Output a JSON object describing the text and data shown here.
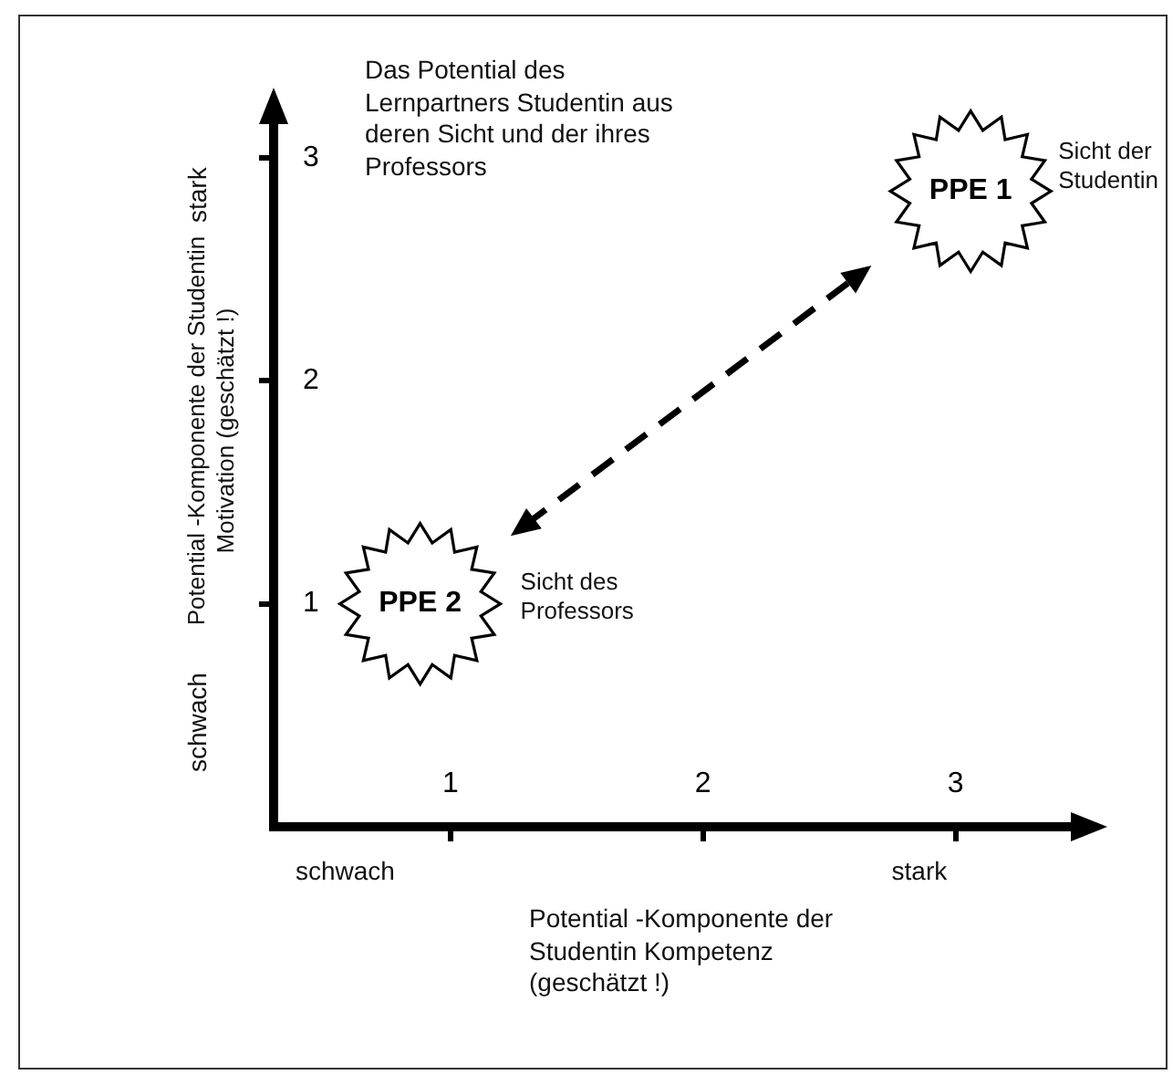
{
  "chart_data": {
    "type": "scatter",
    "title": "Das Potential des Lernpartners Studentin aus deren Sicht und der ihres Professors",
    "xlabel": "Potential -Komponente der Studentin Kompetenz (geschätzt !)",
    "ylabel": "Potential -Komponente der Studentin Motivation (geschätzt !)",
    "xlim": [
      0.3,
      3.5
    ],
    "ylim": [
      0,
      3.2
    ],
    "xticks": [
      1,
      2,
      3
    ],
    "yticks": [
      1,
      2,
      3
    ],
    "marker": "star",
    "legend": false,
    "grid": false,
    "series": [
      {
        "name": "PPE 1",
        "color": "#000000",
        "x": [
          3.06
        ],
        "values": [
          2.85
        ]
      },
      {
        "name": "PPE 2",
        "color": "#000000",
        "x": [
          0.88
        ],
        "values": [
          1.0
        ]
      }
    ],
    "annotations": [
      "schwach",
      "stark",
      "schwach",
      "stark",
      "Sicht der Studentin",
      "Sicht des Professors"
    ]
  }
}
